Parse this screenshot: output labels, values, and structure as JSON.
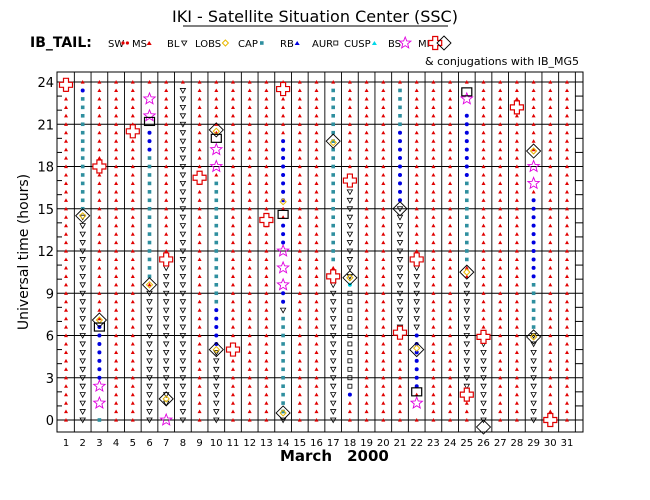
{
  "title": "IKI - Satellite Situation Center (SSC)",
  "satellite_label": "IB_TAIL:",
  "conjugation_note": "& conjugations with IB_MG5",
  "legend": [
    {
      "key": "SW",
      "color": "#e00000",
      "shape": "dot-pair"
    },
    {
      "key": "MS",
      "color": "#e00000",
      "shape": "dot"
    },
    {
      "key": "BL",
      "color": "#000000",
      "shape": "tri-down"
    },
    {
      "key": "LOBS",
      "color": "#e8b800",
      "shape": "diamond-small"
    },
    {
      "key": "CAP",
      "color": "#2f8f9f",
      "shape": "square"
    },
    {
      "key": "RB",
      "color": "#0000e0",
      "shape": "dot"
    },
    {
      "key": "AUR",
      "color": "#000000",
      "shape": "square-open"
    },
    {
      "key": "CUSP",
      "color": "#00d8e8",
      "shape": "dot"
    },
    {
      "key": "BS",
      "color": "#e000e0",
      "shape": "star"
    },
    {
      "key": "MP",
      "color": "#e00000",
      "shape": "cross"
    },
    {
      "key": "",
      "color": "#000000",
      "shape": "diamond-open"
    }
  ],
  "chart_data": {
    "type": "scatter",
    "xlabel": "March",
    "xlabel_year": "2000",
    "ylabel": "Universal time (hours)",
    "xlim": [
      1,
      31
    ],
    "ylim": [
      0,
      24
    ],
    "x_ticks": [
      1,
      2,
      3,
      4,
      5,
      6,
      7,
      8,
      9,
      10,
      11,
      12,
      13,
      14,
      15,
      16,
      17,
      18,
      19,
      20,
      21,
      22,
      23,
      24,
      25,
      26,
      27,
      28,
      29,
      30,
      31
    ],
    "y_ticks": [
      0,
      3,
      6,
      9,
      12,
      15,
      18,
      21,
      24
    ],
    "grid": true,
    "default_region": "SW",
    "region_segments": [
      {
        "day": 2,
        "region": "MS",
        "from": 19.5,
        "to": 24
      },
      {
        "day": 2,
        "region": "RB",
        "from": 14.0,
        "to": 23.5
      },
      {
        "day": 2,
        "region": "CAP",
        "from": 14.8,
        "to": 23.0
      },
      {
        "day": 2,
        "region": "BL",
        "from": 0,
        "to": 14.5
      },
      {
        "day": 3,
        "region": "CAP",
        "from": 0,
        "to": 6
      },
      {
        "day": 3,
        "region": "RB",
        "from": 2.5,
        "to": 7
      },
      {
        "day": 3,
        "region": "BS",
        "from": 0.5,
        "to": 2.5
      },
      {
        "day": 6,
        "region": "BS",
        "from": 21,
        "to": 24
      },
      {
        "day": 6,
        "region": "BL",
        "from": 0,
        "to": 9.5
      },
      {
        "day": 6,
        "region": "CAP",
        "from": 10,
        "to": 19
      },
      {
        "day": 6,
        "region": "RB",
        "from": 19,
        "to": 21
      },
      {
        "day": 7,
        "region": "BS",
        "from": 0,
        "to": 1
      },
      {
        "day": 7,
        "region": "BL",
        "from": 1,
        "to": 11
      },
      {
        "day": 8,
        "region": "BL",
        "from": 0,
        "to": 24
      },
      {
        "day": 10,
        "region": "BS",
        "from": 18,
        "to": 20
      },
      {
        "day": 10,
        "region": "CAP",
        "from": 8,
        "to": 17
      },
      {
        "day": 10,
        "region": "RB",
        "from": 5,
        "to": 8
      },
      {
        "day": 10,
        "region": "BL",
        "from": 0,
        "to": 5
      },
      {
        "day": 14,
        "region": "BL",
        "from": 0,
        "to": 8
      },
      {
        "day": 14,
        "region": "RB",
        "from": 8,
        "to": 14
      },
      {
        "day": 14,
        "region": "BS",
        "from": 9.5,
        "to": 12.5
      },
      {
        "day": 14,
        "region": "CAP",
        "from": 0.5,
        "to": 7.5
      },
      {
        "day": 14,
        "region": "RB",
        "from": 15,
        "to": 20
      },
      {
        "day": 17,
        "region": "CAP",
        "from": 11,
        "to": 24
      },
      {
        "day": 17,
        "region": "BL",
        "from": 0,
        "to": 10
      },
      {
        "day": 18,
        "region": "BL",
        "from": 10,
        "to": 17
      },
      {
        "day": 18,
        "region": "CUSP",
        "from": 5,
        "to": 10
      },
      {
        "day": 18,
        "region": "RB",
        "from": 1.5,
        "to": 5
      },
      {
        "day": 18,
        "region": "AUR",
        "from": 2,
        "to": 9
      },
      {
        "day": 21,
        "region": "CAP",
        "from": 16,
        "to": 24
      },
      {
        "day": 21,
        "region": "RB",
        "from": 15,
        "to": 21
      },
      {
        "day": 21,
        "region": "BL",
        "from": 6.5,
        "to": 15
      },
      {
        "day": 22,
        "region": "BL",
        "from": 2,
        "to": 11
      },
      {
        "day": 22,
        "region": "RB",
        "from": 2,
        "to": 6
      },
      {
        "day": 22,
        "region": "BS",
        "from": 0.5,
        "to": 1.5
      },
      {
        "day": 25,
        "region": "BS",
        "from": 20.5,
        "to": 24
      },
      {
        "day": 25,
        "region": "RB",
        "from": 17,
        "to": 22
      },
      {
        "day": 25,
        "region": "CAP",
        "from": 11,
        "to": 17
      },
      {
        "day": 25,
        "region": "BL",
        "from": 2,
        "to": 10
      },
      {
        "day": 26,
        "region": "BL",
        "from": 0,
        "to": 6
      },
      {
        "day": 29,
        "region": "BS",
        "from": 16.5,
        "to": 19
      },
      {
        "day": 29,
        "region": "RB",
        "from": 10,
        "to": 16
      },
      {
        "day": 29,
        "region": "CAP",
        "from": 6,
        "to": 10
      },
      {
        "day": 29,
        "region": "BL",
        "from": 0,
        "to": 6
      }
    ],
    "mp_crossings": [
      {
        "day": 1,
        "ut": 23.8
      },
      {
        "day": 3,
        "ut": 18.0
      },
      {
        "day": 5,
        "ut": 20.5
      },
      {
        "day": 7,
        "ut": 11.4
      },
      {
        "day": 9,
        "ut": 17.2
      },
      {
        "day": 11,
        "ut": 5.0
      },
      {
        "day": 13,
        "ut": 14.2
      },
      {
        "day": 14,
        "ut": 23.5
      },
      {
        "day": 17,
        "ut": 10.2
      },
      {
        "day": 18,
        "ut": 17.0
      },
      {
        "day": 21,
        "ut": 6.2
      },
      {
        "day": 22,
        "ut": 11.4
      },
      {
        "day": 25,
        "ut": 1.8
      },
      {
        "day": 26,
        "ut": 5.9
      },
      {
        "day": 28,
        "ut": 22.2
      },
      {
        "day": 30,
        "ut": 0.0
      }
    ],
    "lobs_points": [
      {
        "day": 2,
        "ut": 14.5
      },
      {
        "day": 3,
        "ut": 7.1
      },
      {
        "day": 6,
        "ut": 9.6
      },
      {
        "day": 7,
        "ut": 1.5
      },
      {
        "day": 10,
        "ut": 20.5
      },
      {
        "day": 10,
        "ut": 5.0
      },
      {
        "day": 14,
        "ut": 15.5
      },
      {
        "day": 14,
        "ut": 0.5
      },
      {
        "day": 17,
        "ut": 19.7
      },
      {
        "day": 18,
        "ut": 10.1
      },
      {
        "day": 22,
        "ut": 5.1
      },
      {
        "day": 25,
        "ut": 10.5
      },
      {
        "day": 29,
        "ut": 5.9
      },
      {
        "day": 29,
        "ut": 19.1
      }
    ],
    "conjugations": [
      {
        "day": 2,
        "ut": 14.5
      },
      {
        "day": 3,
        "ut": 7.1
      },
      {
        "day": 6,
        "ut": 9.6
      },
      {
        "day": 7,
        "ut": 1.5
      },
      {
        "day": 10,
        "ut": 20.6
      },
      {
        "day": 10,
        "ut": 5.0
      },
      {
        "day": 14,
        "ut": 0.5
      },
      {
        "day": 17,
        "ut": 19.8
      },
      {
        "day": 18,
        "ut": 10.1
      },
      {
        "day": 21,
        "ut": 15.0
      },
      {
        "day": 22,
        "ut": 5.0
      },
      {
        "day": 25,
        "ut": 10.5
      },
      {
        "day": 26,
        "ut": -0.5
      },
      {
        "day": 29,
        "ut": 5.9
      },
      {
        "day": 29,
        "ut": 19.1
      }
    ],
    "marked_boxes": [
      {
        "day": 6,
        "ut": 21.2
      },
      {
        "day": 14,
        "ut": 14.6
      },
      {
        "day": 10,
        "ut": 20.0
      },
      {
        "day": 25,
        "ut": 23.3
      },
      {
        "day": 22,
        "ut": 2.0
      },
      {
        "day": 3,
        "ut": 6.6
      }
    ]
  }
}
